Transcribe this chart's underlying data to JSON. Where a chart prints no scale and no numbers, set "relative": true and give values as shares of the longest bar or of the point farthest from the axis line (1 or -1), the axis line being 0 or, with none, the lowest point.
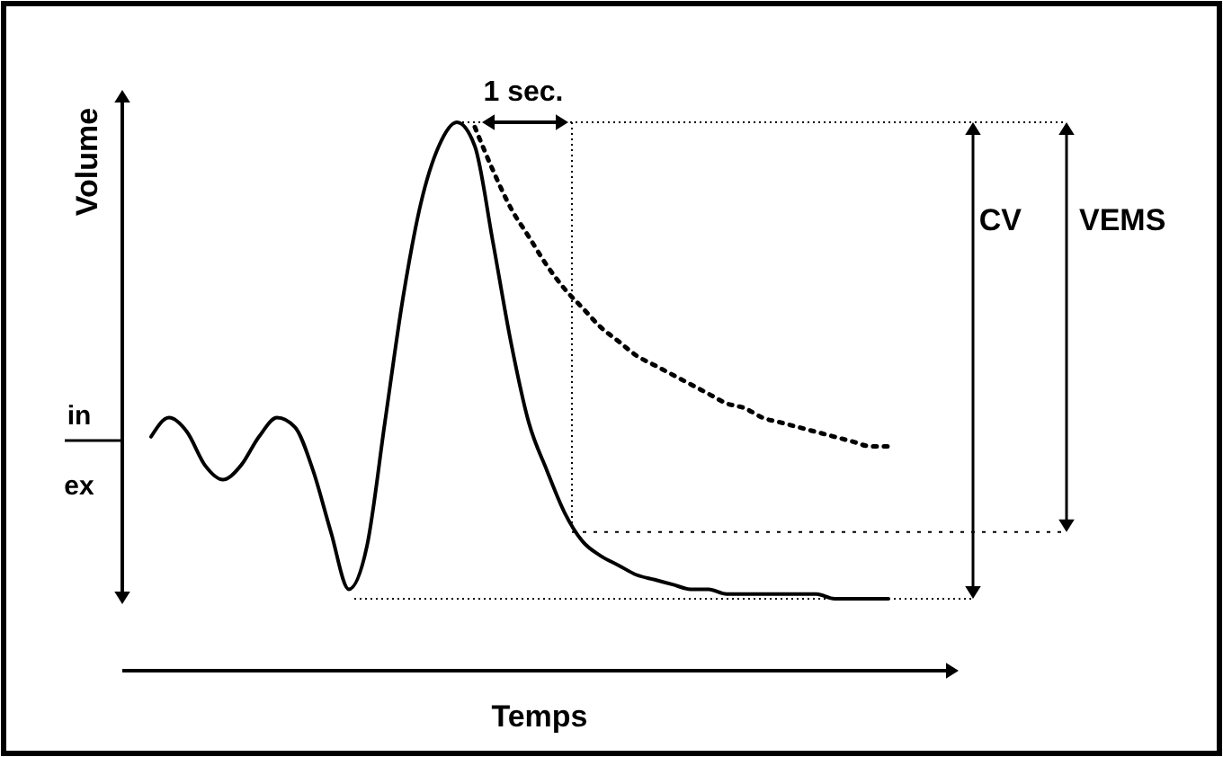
{
  "chart_data": {
    "type": "line",
    "relative": true,
    "xlabel": "Temps",
    "ylabel": "Volume",
    "ref_lines": [
      {
        "axis": "y",
        "value": 0.14,
        "line_style": "dotted"
      }
    ],
    "categories": [
      null,
      null,
      null,
      null,
      null,
      null,
      null,
      null,
      null,
      null,
      null,
      null,
      null,
      null,
      null,
      null,
      null,
      null,
      null,
      null,
      null,
      null,
      null,
      null,
      null,
      null,
      null,
      null,
      null,
      null,
      null,
      null,
      null,
      null,
      null,
      null,
      null,
      null,
      null,
      null,
      null,
      null
    ],
    "series": [
      {
        "color": "#000000",
        "line_style": "solid",
        "values": [
          0.34,
          0.38,
          0.35,
          0.28,
          0.25,
          0.28,
          0.34,
          0.38,
          0.36,
          0.27,
          0.14,
          0.02,
          0.11,
          0.37,
          0.63,
          0.83,
          0.95,
          1,
          0.95,
          0.75,
          0.54,
          0.37,
          0.27,
          0.18,
          0.12,
          0.09,
          0.07,
          0.05,
          0.04,
          0.03,
          0.02,
          0.02,
          0.01,
          0.01,
          0.01,
          0.01,
          0.01,
          0.01,
          0,
          0,
          0,
          0
        ]
      },
      {
        "color": "#000000",
        "line_style": "dotted",
        "values": [
          null,
          null,
          null,
          null,
          null,
          null,
          null,
          null,
          null,
          null,
          null,
          null,
          null,
          null,
          null,
          null,
          null,
          null,
          0.99,
          0.9,
          0.82,
          0.76,
          0.7,
          0.65,
          0.61,
          0.57,
          0.54,
          0.51,
          0.49,
          0.47,
          0.45,
          0.43,
          0.41,
          0.4,
          0.38,
          0.37,
          0.36,
          0.35,
          0.34,
          0.33,
          0.32,
          0.32
        ]
      }
    ],
    "annotations": [
      "1 sec.",
      "CV",
      "VEMS",
      "in",
      "ex"
    ]
  }
}
